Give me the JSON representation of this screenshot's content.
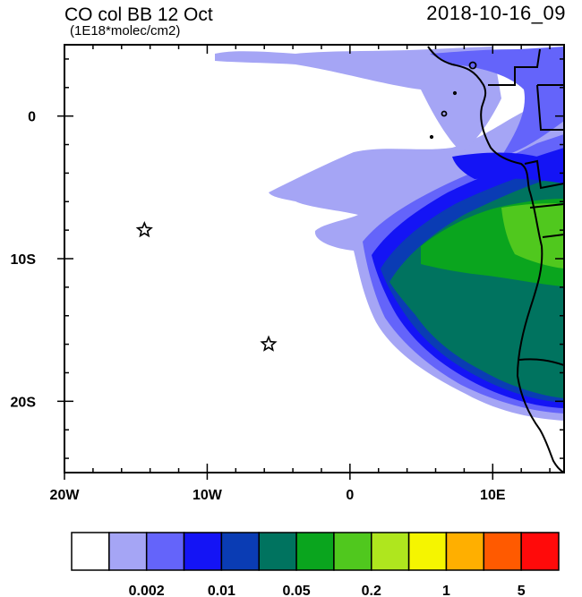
{
  "header": {
    "title": "CO col BB 12 Oct",
    "subtitle": "(1E18*molec/cm2)",
    "datetime": "2018-10-16_09"
  },
  "map": {
    "x_ticks": [
      {
        "lon": -20,
        "label": "20W"
      },
      {
        "lon": -10,
        "label": "10W"
      },
      {
        "lon": 0,
        "label": "0"
      },
      {
        "lon": 10,
        "label": "10E"
      }
    ],
    "y_ticks": [
      {
        "lat": 0,
        "label": "0"
      },
      {
        "lat": -10,
        "label": "10S"
      },
      {
        "lat": -20,
        "label": "20S"
      }
    ],
    "lon_range": [
      -20,
      15
    ],
    "lat_range": [
      -25,
      5
    ],
    "markers": [
      {
        "name": "star",
        "lon": -14.4,
        "lat": -8
      },
      {
        "name": "star",
        "lon": -5.7,
        "lat": -16
      }
    ]
  },
  "colorbar": {
    "colors": [
      "#ffffff",
      "#a5a5f5",
      "#6464fa",
      "#1414f5",
      "#0a3cb4",
      "#00735f",
      "#0aa51e",
      "#50c81e",
      "#afe61e",
      "#f5f500",
      "#ffaf00",
      "#ff5a00",
      "#ff0a0a"
    ],
    "labels": [
      {
        "after_box": 2,
        "text": "0.002"
      },
      {
        "after_box": 4,
        "text": "0.01"
      },
      {
        "after_box": 6,
        "text": "0.05"
      },
      {
        "after_box": 8,
        "text": "0.2"
      },
      {
        "after_box": 10,
        "text": "1"
      },
      {
        "after_box": 12,
        "text": "5"
      }
    ]
  }
}
